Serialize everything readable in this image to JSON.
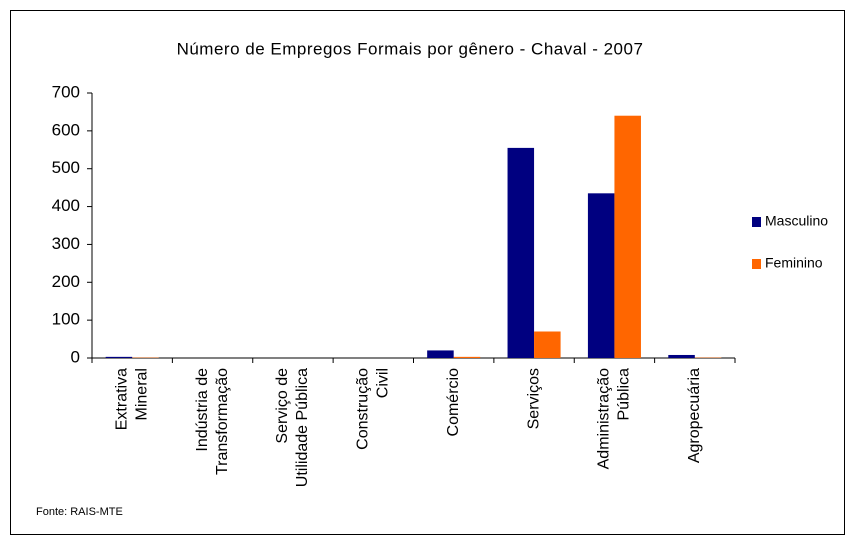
{
  "chart_data": {
    "type": "bar",
    "title": "Número de Empregos Formais por gênero - Chaval - 2007",
    "categories": [
      [
        "Extrativa",
        "Mineral"
      ],
      [
        "Indústria de",
        "Transformação"
      ],
      [
        "Serviço de",
        "Utilidade Pública"
      ],
      [
        "Construção",
        "Civil"
      ],
      [
        "Comércio"
      ],
      [
        "Serviços"
      ],
      [
        "Administração",
        "Pública"
      ],
      [
        "Agropecuária"
      ]
    ],
    "series": [
      {
        "name": "Masculino",
        "color": "#000080",
        "values": [
          3,
          0,
          0,
          0,
          20,
          555,
          435,
          8
        ]
      },
      {
        "name": "Feminino",
        "color": "#ff6600",
        "values": [
          1,
          0,
          0,
          0,
          3,
          70,
          640,
          1
        ]
      }
    ],
    "ylim": [
      0,
      700
    ],
    "yticks": [
      0,
      100,
      200,
      300,
      400,
      500,
      600,
      700
    ],
    "legend": "right",
    "source": "Fonte: RAIS-MTE"
  }
}
